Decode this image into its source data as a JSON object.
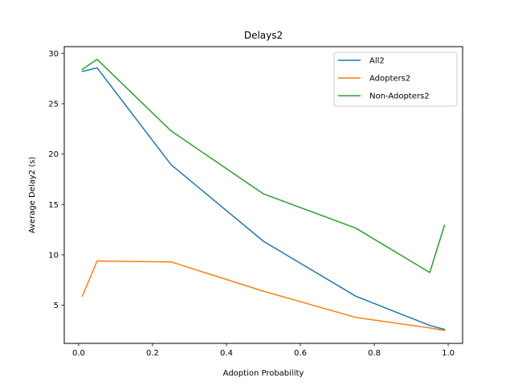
{
  "chart_data": {
    "type": "line",
    "title": "Delays2",
    "xlabel": "Adoption Probability",
    "ylabel": "Average Delay2 (s)",
    "xlim": [
      -0.039,
      1.039
    ],
    "ylim": [
      1.22,
      30.66
    ],
    "xticks": [
      0.0,
      0.2,
      0.4,
      0.6,
      0.8,
      1.0
    ],
    "xtick_labels": [
      "0.0",
      "0.2",
      "0.4",
      "0.6",
      "0.8",
      "1.0"
    ],
    "yticks": [
      5,
      10,
      15,
      20,
      25,
      30
    ],
    "ytick_labels": [
      "5",
      "10",
      "15",
      "20",
      "25",
      "30"
    ],
    "grid": false,
    "legend_position": "top-right",
    "series": [
      {
        "name": "All2",
        "color": "#1f77b4",
        "x": [
          0.01,
          0.05,
          0.25,
          0.5,
          0.75,
          0.95,
          0.99
        ],
        "y": [
          28.2,
          28.55,
          18.95,
          11.35,
          5.9,
          3.0,
          2.6
        ]
      },
      {
        "name": "Adopters2",
        "color": "#ff7f0e",
        "x": [
          0.01,
          0.05,
          0.25,
          0.5,
          0.75,
          0.95,
          0.99
        ],
        "y": [
          5.9,
          9.4,
          9.3,
          6.4,
          3.8,
          2.75,
          2.5
        ]
      },
      {
        "name": "Non-Adopters2",
        "color": "#2ca02c",
        "x": [
          0.01,
          0.05,
          0.25,
          0.5,
          0.75,
          0.95,
          0.99
        ],
        "y": [
          28.4,
          29.4,
          22.3,
          16.05,
          12.65,
          8.25,
          12.95
        ]
      }
    ]
  }
}
